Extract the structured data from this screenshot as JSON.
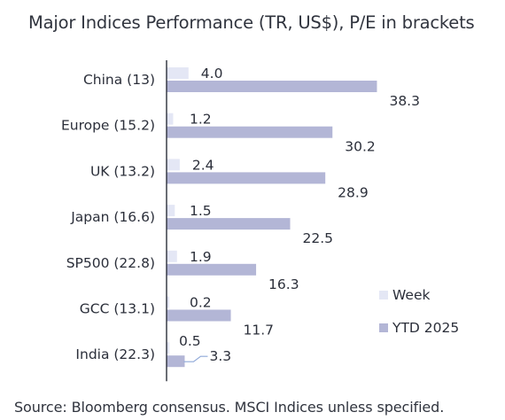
{
  "chart_data": {
    "type": "bar",
    "orientation": "horizontal",
    "title": "Major Indices Performance (TR, US$), P/E in brackets",
    "categories": [
      "China (13)",
      "Europe (15.2)",
      "UK (13.2)",
      "Japan (16.6)",
      "SP500 (22.8)",
      "GCC (13.1)",
      "India (22.3)"
    ],
    "series": [
      {
        "name": "Week",
        "values": [
          4.0,
          1.2,
          2.4,
          1.5,
          1.9,
          0.2,
          0.5
        ],
        "labels": [
          "4.0",
          "1.2",
          "2.4",
          "1.5",
          "1.9",
          "0.2",
          "0.5"
        ],
        "color": "#e4e7f5"
      },
      {
        "name": "YTD 2025",
        "values": [
          38.3,
          30.2,
          28.9,
          22.5,
          16.3,
          11.7,
          3.3
        ],
        "labels": [
          "38.3",
          "30.2",
          "28.9",
          "22.5",
          "16.3",
          "11.7",
          "3.3"
        ],
        "color": "#b3b6d6"
      }
    ],
    "legend_position": "bottom-right",
    "grid": false,
    "source": "Source: Bloomberg consensus. MSCI Indices unless specified."
  }
}
